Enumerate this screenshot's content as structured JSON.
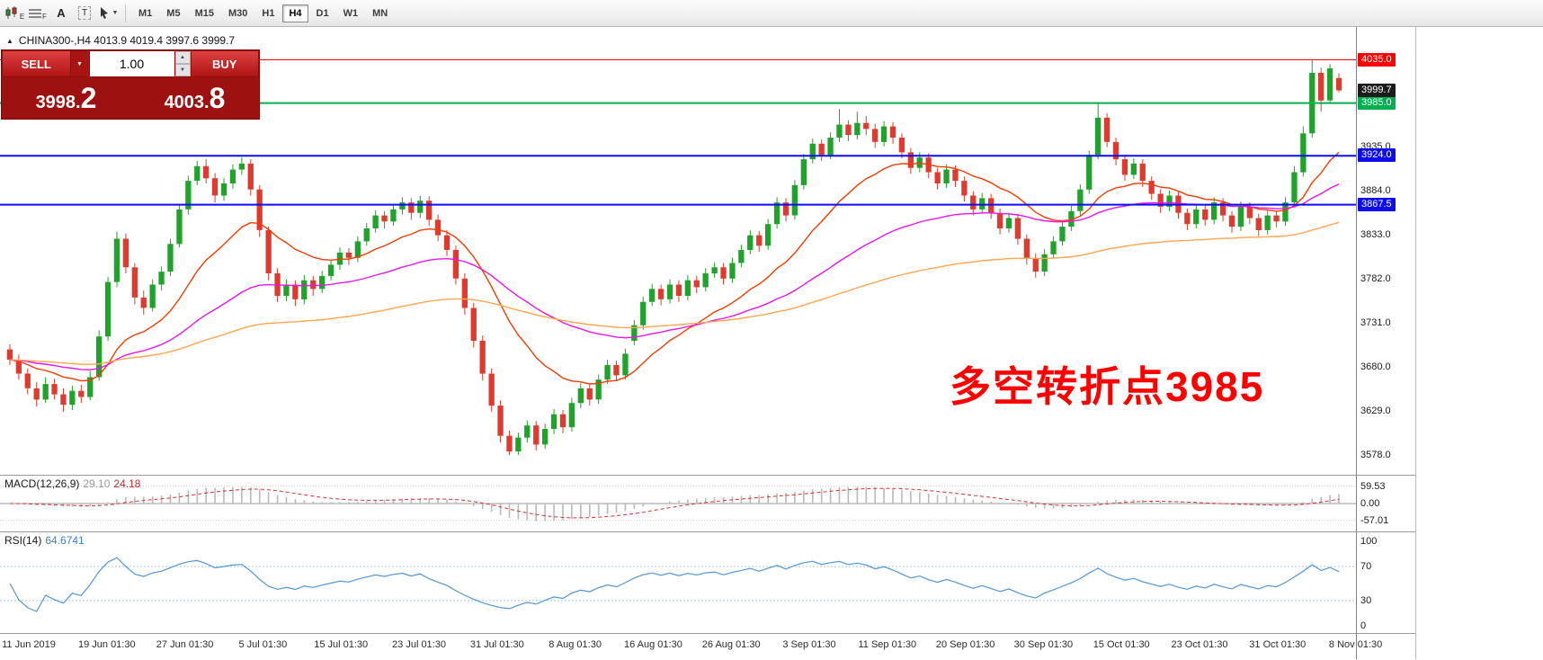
{
  "toolbar": {
    "icon_labels": [
      "E",
      "F",
      "A",
      "T"
    ],
    "timeframes": [
      {
        "label": "M1",
        "active": false
      },
      {
        "label": "M5",
        "active": false
      },
      {
        "label": "M15",
        "active": false
      },
      {
        "label": "M30",
        "active": false
      },
      {
        "label": "H1",
        "active": false
      },
      {
        "label": "H4",
        "active": true
      },
      {
        "label": "D1",
        "active": false
      },
      {
        "label": "W1",
        "active": false
      },
      {
        "label": "MN",
        "active": false
      }
    ]
  },
  "icons": {
    "collapse": "▲",
    "dropdown_caret": "▼",
    "spin_up": "▲",
    "spin_down": "▼"
  },
  "symbol_header": {
    "text": "CHINA300-,H4  4013.9 4019.4 3997.6 3999.7"
  },
  "trade_panel": {
    "sell_label": "SELL",
    "buy_label": "BUY",
    "volume": "1.00",
    "sell_price_main": "3998.",
    "sell_price_big": "2",
    "buy_price_main": "4003.",
    "buy_price_big": "8"
  },
  "macd_panel": {
    "title": "MACD(12,26,9)",
    "main_value": "29.10",
    "signal_value": "24.18"
  },
  "rsi_panel": {
    "title": "RSI(14)",
    "value": "64.6741"
  },
  "theme": {
    "candle_up": "#1fa32a",
    "candle_down": "#e03a2f",
    "macd_hist": "#b9b9b9",
    "macd_signal": "#d93030",
    "rsi_line": "#4f96d8",
    "rsi_level": "#a9c7e2",
    "panel_red": "#9e1111"
  },
  "chart_data": {
    "type": "candlestick",
    "symbol": "CHINA300-",
    "timeframe": "H4",
    "ohlc_header": {
      "open": 4013.9,
      "high": 4019.4,
      "low": 3997.6,
      "close": 3999.7
    },
    "y_range": [
      3555,
      4073
    ],
    "y_ticks": [
      3935,
      3884,
      3833,
      3782,
      3731,
      3680,
      3629,
      3578
    ],
    "x_labels": [
      "11 Jun 2019",
      "19 Jun 01:30",
      "27 Jun 01:30",
      "5 Jul 01:30",
      "15 Jul 01:30",
      "23 Jul 01:30",
      "31 Jul 01:30",
      "8 Aug 01:30",
      "16 Aug 01:30",
      "26 Aug 01:30",
      "3 Sep 01:30",
      "11 Sep 01:30",
      "20 Sep 01:30",
      "30 Sep 01:30",
      "15 Oct 01:30",
      "23 Oct 01:30",
      "31 Oct 01:30",
      "8 Nov 01:30"
    ],
    "candles": [
      [
        3700,
        3706,
        3682,
        3688
      ],
      [
        3688,
        3694,
        3665,
        3672
      ],
      [
        3672,
        3678,
        3648,
        3655
      ],
      [
        3655,
        3662,
        3634,
        3642
      ],
      [
        3642,
        3668,
        3638,
        3660
      ],
      [
        3660,
        3666,
        3642,
        3648
      ],
      [
        3648,
        3655,
        3628,
        3636
      ],
      [
        3636,
        3658,
        3630,
        3652
      ],
      [
        3652,
        3659,
        3638,
        3645
      ],
      [
        3645,
        3675,
        3641,
        3668
      ],
      [
        3668,
        3722,
        3664,
        3715
      ],
      [
        3715,
        3784,
        3710,
        3778
      ],
      [
        3778,
        3836,
        3772,
        3828
      ],
      [
        3828,
        3834,
        3788,
        3795
      ],
      [
        3795,
        3800,
        3752,
        3760
      ],
      [
        3760,
        3768,
        3740,
        3748
      ],
      [
        3748,
        3781,
        3744,
        3775
      ],
      [
        3775,
        3796,
        3768,
        3790
      ],
      [
        3790,
        3828,
        3785,
        3822
      ],
      [
        3822,
        3868,
        3818,
        3862
      ],
      [
        3862,
        3901,
        3856,
        3895
      ],
      [
        3895,
        3918,
        3890,
        3912
      ],
      [
        3912,
        3920,
        3892,
        3898
      ],
      [
        3898,
        3904,
        3870,
        3878
      ],
      [
        3878,
        3898,
        3872,
        3892
      ],
      [
        3892,
        3914,
        3886,
        3908
      ],
      [
        3908,
        3922,
        3902,
        3915
      ],
      [
        3915,
        3920,
        3878,
        3885
      ],
      [
        3885,
        3890,
        3830,
        3838
      ],
      [
        3838,
        3842,
        3780,
        3788
      ],
      [
        3788,
        3794,
        3755,
        3762
      ],
      [
        3762,
        3781,
        3756,
        3775
      ],
      [
        3775,
        3780,
        3750,
        3758
      ],
      [
        3758,
        3786,
        3752,
        3780
      ],
      [
        3780,
        3785,
        3762,
        3770
      ],
      [
        3770,
        3791,
        3765,
        3785
      ],
      [
        3785,
        3804,
        3780,
        3798
      ],
      [
        3798,
        3818,
        3792,
        3812
      ],
      [
        3812,
        3817,
        3798,
        3806
      ],
      [
        3806,
        3831,
        3801,
        3825
      ],
      [
        3825,
        3846,
        3820,
        3840
      ],
      [
        3840,
        3861,
        3835,
        3855
      ],
      [
        3855,
        3860,
        3840,
        3848
      ],
      [
        3848,
        3868,
        3843,
        3862
      ],
      [
        3862,
        3876,
        3856,
        3870
      ],
      [
        3870,
        3875,
        3850,
        3858
      ],
      [
        3858,
        3878,
        3852,
        3872
      ],
      [
        3872,
        3877,
        3843,
        3850
      ],
      [
        3850,
        3856,
        3825,
        3832
      ],
      [
        3832,
        3838,
        3808,
        3815
      ],
      [
        3815,
        3820,
        3775,
        3782
      ],
      [
        3782,
        3788,
        3740,
        3748
      ],
      [
        3748,
        3754,
        3702,
        3710
      ],
      [
        3710,
        3716,
        3664,
        3672
      ],
      [
        3672,
        3678,
        3628,
        3635
      ],
      [
        3635,
        3641,
        3592,
        3600
      ],
      [
        3600,
        3606,
        3578,
        3582
      ],
      [
        3582,
        3604,
        3578,
        3598
      ],
      [
        3598,
        3618,
        3592,
        3612
      ],
      [
        3612,
        3617,
        3583,
        3590
      ],
      [
        3590,
        3614,
        3585,
        3608
      ],
      [
        3608,
        3631,
        3602,
        3625
      ],
      [
        3625,
        3630,
        3603,
        3610
      ],
      [
        3610,
        3644,
        3605,
        3638
      ],
      [
        3638,
        3661,
        3632,
        3655
      ],
      [
        3655,
        3660,
        3635,
        3642
      ],
      [
        3642,
        3671,
        3637,
        3665
      ],
      [
        3665,
        3688,
        3660,
        3682
      ],
      [
        3682,
        3687,
        3663,
        3670
      ],
      [
        3670,
        3701,
        3665,
        3695
      ],
      [
        3710,
        3734,
        3705,
        3728
      ],
      [
        3728,
        3761,
        3723,
        3755
      ],
      [
        3755,
        3776,
        3750,
        3770
      ],
      [
        3770,
        3775,
        3751,
        3758
      ],
      [
        3758,
        3781,
        3753,
        3775
      ],
      [
        3775,
        3780,
        3755,
        3762
      ],
      [
        3762,
        3786,
        3757,
        3780
      ],
      [
        3780,
        3785,
        3765,
        3772
      ],
      [
        3772,
        3794,
        3767,
        3788
      ],
      [
        3788,
        3801,
        3783,
        3795
      ],
      [
        3795,
        3800,
        3775,
        3782
      ],
      [
        3782,
        3806,
        3777,
        3800
      ],
      [
        3800,
        3821,
        3795,
        3815
      ],
      [
        3815,
        3838,
        3810,
        3832
      ],
      [
        3832,
        3837,
        3813,
        3820
      ],
      [
        3820,
        3851,
        3815,
        3845
      ],
      [
        3845,
        3876,
        3840,
        3870
      ],
      [
        3870,
        3875,
        3848,
        3855
      ],
      [
        3855,
        3896,
        3850,
        3890
      ],
      [
        3890,
        3926,
        3885,
        3920
      ],
      [
        3920,
        3944,
        3915,
        3938
      ],
      [
        3938,
        3943,
        3918,
        3925
      ],
      [
        3925,
        3951,
        3920,
        3945
      ],
      [
        3945,
        3978,
        3940,
        3960
      ],
      [
        3960,
        3965,
        3941,
        3948
      ],
      [
        3948,
        3975,
        3943,
        3962
      ],
      [
        3962,
        3970,
        3948,
        3955
      ],
      [
        3955,
        3961,
        3933,
        3940
      ],
      [
        3940,
        3964,
        3935,
        3958
      ],
      [
        3958,
        3963,
        3938,
        3945
      ],
      [
        3945,
        3950,
        3921,
        3928
      ],
      [
        3928,
        3933,
        3903,
        3910
      ],
      [
        3910,
        3928,
        3905,
        3922
      ],
      [
        3922,
        3927,
        3898,
        3905
      ],
      [
        3905,
        3910,
        3885,
        3892
      ],
      [
        3892,
        3914,
        3887,
        3908
      ],
      [
        3908,
        3913,
        3888,
        3895
      ],
      [
        3895,
        3900,
        3871,
        3878
      ],
      [
        3878,
        3883,
        3855,
        3862
      ],
      [
        3862,
        3881,
        3857,
        3875
      ],
      [
        3875,
        3880,
        3851,
        3858
      ],
      [
        3858,
        3863,
        3833,
        3840
      ],
      [
        3840,
        3858,
        3835,
        3852
      ],
      [
        3852,
        3857,
        3821,
        3828
      ],
      [
        3828,
        3833,
        3798,
        3805
      ],
      [
        3805,
        3811,
        3783,
        3790
      ],
      [
        3790,
        3816,
        3785,
        3810
      ],
      [
        3810,
        3831,
        3805,
        3825
      ],
      [
        3825,
        3848,
        3820,
        3842
      ],
      [
        3842,
        3866,
        3837,
        3860
      ],
      [
        3860,
        3891,
        3855,
        3885
      ],
      [
        3885,
        3930,
        3880,
        3925
      ],
      [
        3925,
        3986,
        3920,
        3968
      ],
      [
        3968,
        3973,
        3934,
        3940
      ],
      [
        3940,
        3945,
        3913,
        3920
      ],
      [
        3920,
        3925,
        3895,
        3902
      ],
      [
        3902,
        3921,
        3897,
        3915
      ],
      [
        3915,
        3920,
        3888,
        3895
      ],
      [
        3895,
        3900,
        3873,
        3880
      ],
      [
        3880,
        3885,
        3858,
        3865
      ],
      [
        3865,
        3884,
        3860,
        3878
      ],
      [
        3878,
        3883,
        3851,
        3858
      ],
      [
        3858,
        3863,
        3838,
        3845
      ],
      [
        3845,
        3868,
        3840,
        3862
      ],
      [
        3862,
        3867,
        3843,
        3850
      ],
      [
        3850,
        3876,
        3845,
        3870
      ],
      [
        3870,
        3875,
        3848,
        3855
      ],
      [
        3855,
        3860,
        3835,
        3842
      ],
      [
        3842,
        3871,
        3837,
        3865
      ],
      [
        3865,
        3870,
        3845,
        3852
      ],
      [
        3852,
        3857,
        3831,
        3838
      ],
      [
        3838,
        3861,
        3833,
        3855
      ],
      [
        3855,
        3860,
        3841,
        3848
      ],
      [
        3848,
        3876,
        3843,
        3870
      ],
      [
        3870,
        3912,
        3865,
        3905
      ],
      [
        3905,
        3958,
        3900,
        3950
      ],
      [
        3950,
        4035,
        3945,
        4020
      ],
      [
        4020,
        4026,
        3975,
        3988
      ],
      [
        3988,
        4030,
        3984,
        4025
      ],
      [
        4013.9,
        4019.4,
        3997.6,
        3999.7
      ]
    ],
    "overlays": {
      "horizontal_lines": [
        {
          "price": 4035.0,
          "color": "#ff0000",
          "width": 1,
          "label": "4035.0"
        },
        {
          "price": 3985.0,
          "color": "#00b050",
          "width": 2,
          "label": "3985.0"
        },
        {
          "price": 3924.0,
          "color": "#0d0df0",
          "width": 2,
          "label": "3924.0"
        },
        {
          "price": 3867.5,
          "color": "#0d0df0",
          "width": 2,
          "label": "3867.5"
        }
      ],
      "current_price": {
        "value": 3999.7,
        "label": "3999.7",
        "box_color": "#1c1c1c"
      },
      "moving_averages": [
        {
          "period": 16,
          "color": "#f43b00"
        },
        {
          "period": 45,
          "color": "#e816e8"
        },
        {
          "period": 110,
          "color": "#ffa64d"
        }
      ],
      "annotation": {
        "text": "多空转折点3985",
        "color": "#ff0000"
      }
    },
    "indicators": [
      {
        "name": "MACD",
        "params": "12,26,9",
        "values": [
          29.1,
          24.18
        ],
        "axis": [
          "59.53",
          "0.00",
          "-57.01"
        ],
        "range": [
          -95,
          95
        ]
      },
      {
        "name": "RSI",
        "params": "14",
        "value": 64.6741,
        "axis": [
          "100",
          "70",
          "30",
          "0"
        ],
        "levels": [
          70,
          30
        ],
        "range": [
          -8,
          110
        ]
      }
    ]
  }
}
